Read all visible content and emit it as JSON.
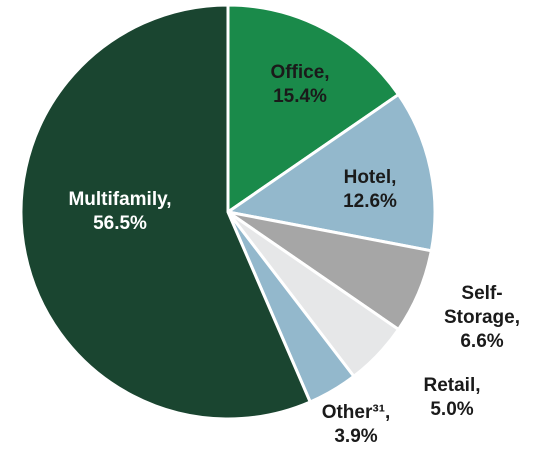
{
  "chart_data": {
    "type": "pie",
    "categories": [
      "Office,",
      "Hotel,",
      "Self-Storage,",
      "Retail,",
      "Other³¹,",
      "Multifamily,"
    ],
    "values": [
      15.4,
      12.6,
      6.6,
      5.0,
      3.9,
      56.5
    ],
    "value_labels": [
      "15.4%",
      "12.6%",
      "6.6%",
      "5.0%",
      "3.9%",
      "56.5%"
    ],
    "colors": [
      "#1a8a4a",
      "#93b8cc",
      "#a6a6a6",
      "#e6e7e8",
      "#93b8cc",
      "#1a4530"
    ]
  }
}
